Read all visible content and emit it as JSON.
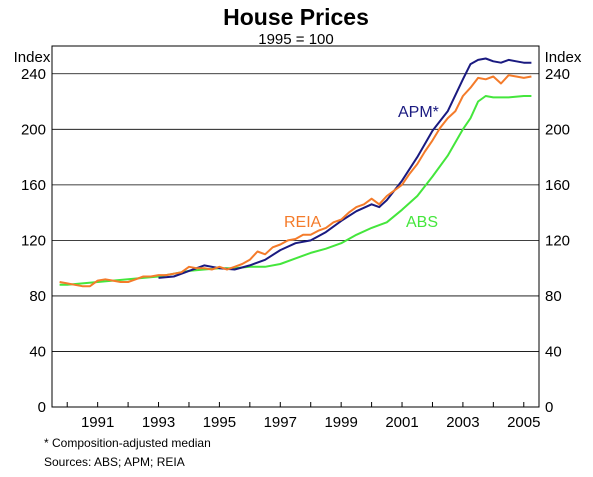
{
  "chart_data": {
    "type": "line",
    "title": "House Prices",
    "subtitle": "1995 = 100",
    "y_unit_left": "Index",
    "y_unit_right": "Index",
    "xlim": [
      1989.5,
      2005.5
    ],
    "ylim": [
      0,
      260
    ],
    "y_ticks": [
      0,
      40,
      80,
      120,
      160,
      200,
      240
    ],
    "x_tick_labels": [
      "1991",
      "1993",
      "1995",
      "1997",
      "1999",
      "2001",
      "2003",
      "2005"
    ],
    "x_tick_values": [
      1991,
      1993,
      1995,
      1997,
      1999,
      2001,
      2003,
      2005
    ],
    "grid": true,
    "series": [
      {
        "name": "APM*",
        "color": "#1a1a80",
        "x": [
          1993.0,
          1993.5,
          1994.0,
          1994.5,
          1995.0,
          1995.5,
          1996.0,
          1996.5,
          1997.0,
          1997.5,
          1998.0,
          1998.5,
          1999.0,
          1999.5,
          2000.0,
          2000.25,
          2000.5,
          2001.0,
          2001.5,
          2002.0,
          2002.5,
          2003.0,
          2003.25,
          2003.5,
          2003.75,
          2004.0,
          2004.25,
          2004.5,
          2004.75,
          2005.0,
          2005.25
        ],
        "y": [
          93,
          94,
          98,
          102,
          100,
          99,
          102,
          106,
          113,
          118,
          120,
          126,
          134,
          141,
          146,
          144,
          149,
          163,
          180,
          199,
          213,
          236,
          247,
          250,
          251,
          249,
          248,
          250,
          249,
          248,
          248
        ]
      },
      {
        "name": "REIA",
        "color": "#f47b2a",
        "x": [
          1989.75,
          1990.0,
          1990.25,
          1990.5,
          1990.75,
          1991.0,
          1991.25,
          1991.5,
          1991.75,
          1992.0,
          1992.25,
          1992.5,
          1992.75,
          1993.0,
          1993.25,
          1993.5,
          1993.75,
          1994.0,
          1994.25,
          1994.5,
          1994.75,
          1995.0,
          1995.25,
          1995.5,
          1995.75,
          1996.0,
          1996.25,
          1996.5,
          1996.75,
          1997.0,
          1997.25,
          1997.5,
          1997.75,
          1998.0,
          1998.25,
          1998.5,
          1998.75,
          1999.0,
          1999.25,
          1999.5,
          1999.75,
          2000.0,
          2000.25,
          2000.5,
          2000.75,
          2001.0,
          2001.25,
          2001.5,
          2001.75,
          2002.0,
          2002.25,
          2002.5,
          2002.75,
          2003.0,
          2003.25,
          2003.5,
          2003.75,
          2004.0,
          2004.25,
          2004.5,
          2004.75,
          2005.0,
          2005.25
        ],
        "y": [
          90,
          89,
          88,
          87,
          87,
          91,
          92,
          91,
          90,
          90,
          92,
          94,
          94,
          95,
          95,
          96,
          97,
          101,
          100,
          100,
          99,
          101,
          99,
          101,
          103,
          106,
          112,
          110,
          115,
          117,
          120,
          121,
          124,
          124,
          127,
          129,
          133,
          135,
          140,
          144,
          146,
          150,
          146,
          152,
          156,
          160,
          168,
          175,
          184,
          192,
          201,
          208,
          213,
          224,
          230,
          237,
          236,
          238,
          233,
          239,
          238,
          237,
          238
        ]
      },
      {
        "name": "ABS",
        "color": "#44e63c",
        "x": [
          1989.75,
          1990.0,
          1990.5,
          1991.0,
          1991.5,
          1992.0,
          1992.5,
          1993.0,
          1993.5,
          1994.0,
          1994.5,
          1995.0,
          1995.5,
          1996.0,
          1996.5,
          1997.0,
          1997.5,
          1998.0,
          1998.5,
          1999.0,
          1999.5,
          2000.0,
          2000.5,
          2001.0,
          2001.5,
          2002.0,
          2002.5,
          2003.0,
          2003.25,
          2003.5,
          2003.75,
          2004.0,
          2004.5,
          2005.0,
          2005.25
        ],
        "y": [
          88,
          88,
          89,
          90,
          91,
          92,
          93,
          94,
          96,
          98,
          99,
          100,
          100,
          101,
          101,
          103,
          107,
          111,
          114,
          118,
          124,
          129,
          133,
          142,
          152,
          166,
          181,
          200,
          208,
          220,
          224,
          223,
          223,
          224,
          224
        ]
      }
    ],
    "notes": [
      "*  Composition-adjusted median",
      "Sources: ABS; APM; REIA"
    ]
  }
}
